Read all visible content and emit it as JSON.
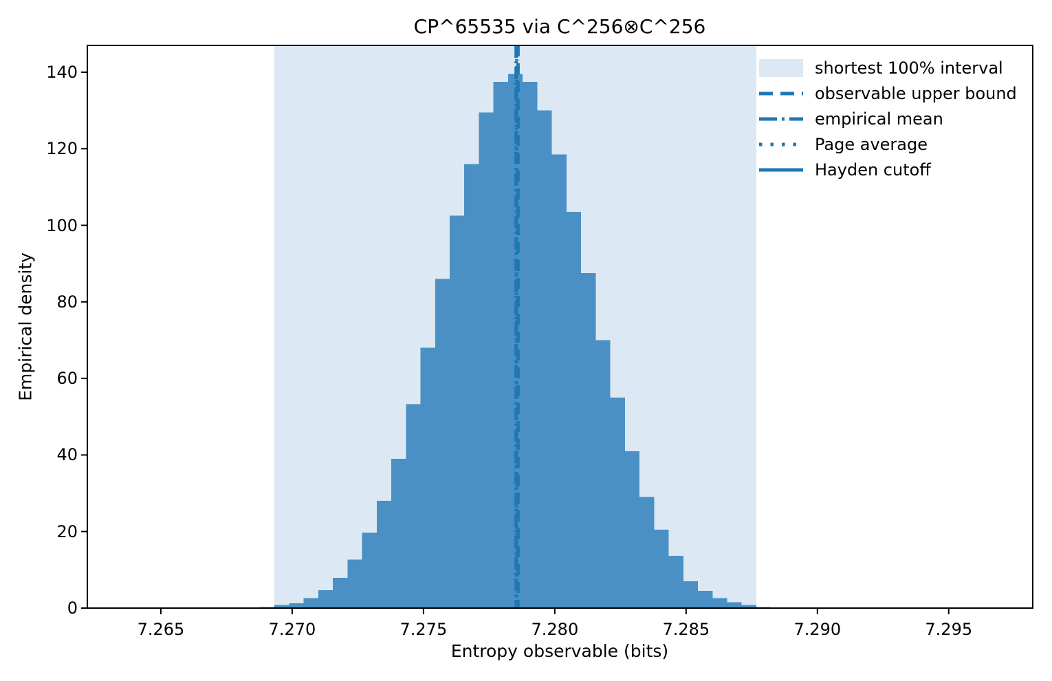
{
  "chart_data": {
    "type": "bar",
    "subtype": "histogram",
    "title": "CP^65535 via C^256⊗C^256",
    "xlabel": "Entropy observable (bits)",
    "ylabel": "Empirical density",
    "xlim": [
      7.2622,
      7.2982
    ],
    "ylim": [
      0,
      147
    ],
    "xticks": [
      7.265,
      7.27,
      7.275,
      7.28,
      7.285,
      7.29,
      7.295
    ],
    "yticks": [
      0,
      20,
      40,
      60,
      80,
      100,
      120,
      140
    ],
    "grid": false,
    "legend_position": "upper right",
    "histogram": {
      "bin_start": 7.26877,
      "bin_width": 0.000556,
      "heights": [
        0.3,
        0.8,
        1.3,
        2.6,
        4.7,
        7.9,
        12.7,
        19.7,
        28,
        39,
        53.3,
        68,
        86,
        102.5,
        116,
        129.5,
        137.5,
        139.5,
        137.5,
        130,
        118.5,
        103.5,
        87.5,
        70,
        55,
        41,
        29,
        20.5,
        13.7,
        7,
        4.5,
        2.6,
        1.5,
        0.8,
        0.25
      ]
    },
    "interval": {
      "label": "shortest 100% interval",
      "from": 7.26932,
      "to": 7.28767
    },
    "vlines": [
      {
        "label": "observable upper bound",
        "x": 7.2786,
        "style": "dashed",
        "visible": true
      },
      {
        "label": "empirical mean",
        "x": 7.27853,
        "style": "dashdot",
        "visible": true
      },
      {
        "label": "Page average",
        "x": 7.27855,
        "style": "dotted",
        "visible": true
      },
      {
        "label": "Hayden cutoff",
        "x": 7.27853,
        "style": "solid",
        "visible": false
      }
    ],
    "legend": [
      {
        "label": "shortest 100% interval",
        "swatch": "patch"
      },
      {
        "label": "observable upper bound",
        "swatch": "dashed"
      },
      {
        "label": "empirical mean",
        "swatch": "dashdot"
      },
      {
        "label": "Page average",
        "swatch": "dotted"
      },
      {
        "label": "Hayden cutoff",
        "swatch": "solid"
      }
    ],
    "colors": {
      "bar": "#4a90c4",
      "interval_fill": "#dce8f3",
      "line": "#1f77b4",
      "spine": "#000000",
      "text": "#000000"
    }
  }
}
